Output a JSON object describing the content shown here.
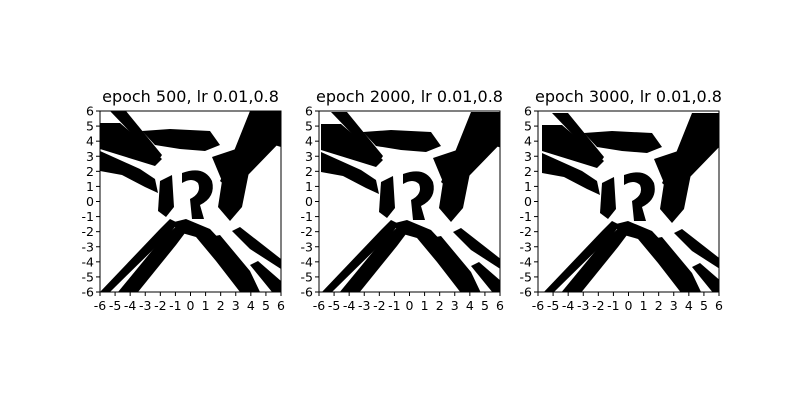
{
  "chart_data": [
    {
      "type": "heatmap",
      "title": "epoch 500, lr 0.01,0.8",
      "xlim": [
        -6,
        6
      ],
      "ylim": [
        -6,
        6
      ],
      "x_ticks": [
        "-6",
        "-5",
        "-4",
        "-3",
        "-2",
        "-1",
        "0",
        "1",
        "2",
        "3",
        "4",
        "5",
        "6"
      ],
      "y_ticks": [
        "-6",
        "-5",
        "-4",
        "-3",
        "-2",
        "-1",
        "0",
        "1",
        "2",
        "3",
        "4",
        "5",
        "6"
      ],
      "colormap": [
        "#ffffff",
        "#000000"
      ],
      "grid": false
    },
    {
      "type": "heatmap",
      "title": "epoch 2000, lr 0.01,0.8",
      "xlim": [
        -6,
        6
      ],
      "ylim": [
        -6,
        6
      ],
      "x_ticks": [
        "-6",
        "-5",
        "-4",
        "-3",
        "-2",
        "-1",
        "0",
        "1",
        "2",
        "3",
        "4",
        "5",
        "6"
      ],
      "y_ticks": [
        "-6",
        "-5",
        "-4",
        "-3",
        "-2",
        "-1",
        "0",
        "1",
        "2",
        "3",
        "4",
        "5",
        "6"
      ],
      "colormap": [
        "#ffffff",
        "#000000"
      ],
      "grid": false
    },
    {
      "type": "heatmap",
      "title": "epoch 3000, lr 0.01,0.8",
      "xlim": [
        -6,
        6
      ],
      "ylim": [
        -6,
        6
      ],
      "x_ticks": [
        "-6",
        "-5",
        "-4",
        "-3",
        "-2",
        "-1",
        "0",
        "1",
        "2",
        "3",
        "4",
        "5",
        "6"
      ],
      "y_ticks": [
        "-6",
        "-5",
        "-4",
        "-3",
        "-2",
        "-1",
        "0",
        "1",
        "2",
        "3",
        "4",
        "5",
        "6"
      ],
      "colormap": [
        "#ffffff",
        "#000000"
      ],
      "grid": false
    }
  ]
}
